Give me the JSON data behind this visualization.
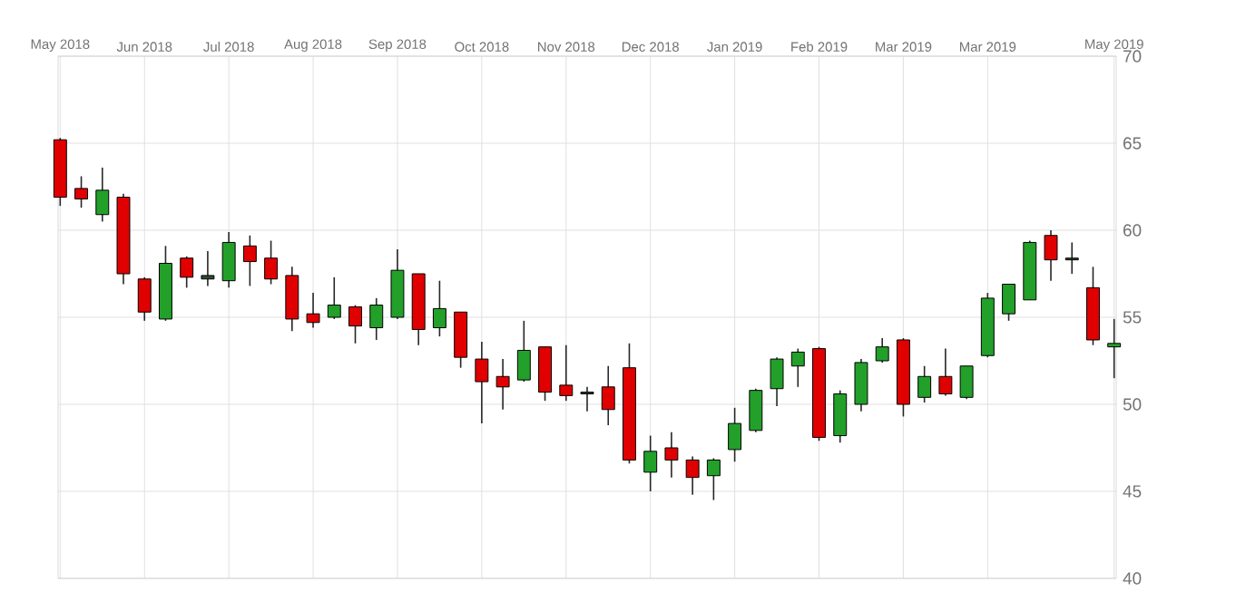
{
  "chart_data": {
    "type": "candlestick",
    "categories": [
      "May 2018",
      null,
      null,
      null,
      "Jun 2018",
      null,
      null,
      null,
      "Jul 2018",
      null,
      null,
      null,
      "Aug 2018",
      null,
      null,
      null,
      "Sep 2018",
      null,
      null,
      null,
      "Oct 2018",
      null,
      null,
      null,
      "Nov 2018",
      null,
      null,
      null,
      "Dec 2018",
      null,
      null,
      null,
      "Jan 2019",
      null,
      null,
      null,
      "Feb 2019",
      null,
      null,
      null,
      "Mar 2019",
      null,
      null,
      null,
      "Mar 2019",
      null,
      null,
      null,
      null,
      null,
      "May 2019"
    ],
    "ohlc": [
      [
        65.2,
        65.3,
        61.4,
        61.9
      ],
      [
        62.4,
        63.1,
        61.3,
        61.8
      ],
      [
        60.9,
        63.6,
        60.5,
        62.3
      ],
      [
        61.9,
        62.1,
        56.9,
        57.5
      ],
      [
        57.2,
        57.3,
        54.8,
        55.3
      ],
      [
        54.9,
        59.1,
        54.8,
        58.1
      ],
      [
        58.4,
        58.5,
        56.7,
        57.3
      ],
      [
        57.2,
        58.8,
        56.8,
        57.4
      ],
      [
        57.1,
        59.9,
        56.7,
        59.3
      ],
      [
        59.1,
        59.7,
        56.8,
        58.2
      ],
      [
        58.4,
        59.4,
        56.9,
        57.2
      ],
      [
        57.4,
        57.9,
        54.2,
        54.9
      ],
      [
        55.2,
        56.4,
        54.4,
        54.7
      ],
      [
        55.0,
        57.3,
        54.9,
        55.7
      ],
      [
        55.6,
        55.7,
        53.5,
        54.5
      ],
      [
        54.4,
        56.1,
        53.7,
        55.7
      ],
      [
        55.0,
        58.9,
        54.9,
        57.7
      ],
      [
        57.5,
        57.5,
        53.4,
        54.3
      ],
      [
        54.4,
        57.1,
        53.9,
        55.5
      ],
      [
        55.3,
        55.3,
        52.1,
        52.7
      ],
      [
        52.6,
        53.6,
        48.9,
        51.3
      ],
      [
        51.6,
        52.6,
        49.7,
        51.0
      ],
      [
        51.4,
        54.8,
        51.3,
        53.1
      ],
      [
        53.3,
        53.3,
        50.2,
        50.7
      ],
      [
        51.1,
        53.4,
        50.2,
        50.5
      ],
      [
        50.6,
        51.0,
        49.6,
        50.7
      ],
      [
        51.0,
        52.2,
        48.8,
        49.7
      ],
      [
        52.1,
        53.5,
        46.6,
        46.8
      ],
      [
        46.1,
        48.2,
        45.0,
        47.3
      ],
      [
        47.5,
        48.4,
        45.8,
        46.8
      ],
      [
        46.8,
        47.0,
        44.8,
        45.8
      ],
      [
        45.9,
        46.9,
        44.5,
        46.8
      ],
      [
        47.4,
        49.8,
        46.7,
        48.9
      ],
      [
        48.5,
        50.9,
        48.4,
        50.8
      ],
      [
        50.9,
        52.7,
        49.9,
        52.6
      ],
      [
        52.2,
        53.2,
        51.0,
        53.0
      ],
      [
        53.2,
        53.3,
        47.9,
        48.1
      ],
      [
        48.2,
        50.8,
        47.8,
        50.6
      ],
      [
        50.0,
        52.6,
        49.6,
        52.4
      ],
      [
        52.5,
        53.8,
        52.4,
        53.3
      ],
      [
        53.7,
        53.8,
        49.3,
        50.0
      ],
      [
        50.4,
        52.2,
        50.1,
        51.6
      ],
      [
        51.6,
        53.2,
        50.5,
        50.6
      ],
      [
        50.4,
        52.2,
        50.3,
        52.2
      ],
      [
        52.8,
        56.4,
        52.7,
        56.1
      ],
      [
        55.2,
        56.9,
        54.8,
        56.9
      ],
      [
        56.0,
        59.4,
        56.0,
        59.3
      ],
      [
        59.7,
        60.0,
        57.1,
        58.3
      ],
      [
        58.4,
        59.3,
        57.5,
        58.3
      ],
      [
        56.7,
        57.9,
        53.4,
        53.7
      ],
      [
        53.3,
        54.9,
        51.5,
        53.5
      ]
    ],
    "colors": [
      "#e00000",
      "#e00000",
      "#22a02a",
      "#e00000",
      "#e00000",
      "#22a02a",
      "#e00000",
      "#2f4a30",
      "#22a02a",
      "#e00000",
      "#e00000",
      "#e00000",
      "#e00000",
      "#22a02a",
      "#e00000",
      "#22a02a",
      "#22a02a",
      "#e00000",
      "#22a02a",
      "#e00000",
      "#e00000",
      "#e00000",
      "#22a02a",
      "#e00000",
      "#e00000",
      "#2f4a30",
      "#e00000",
      "#e00000",
      "#22a02a",
      "#e00000",
      "#e00000",
      "#22a02a",
      "#22a02a",
      "#22a02a",
      "#22a02a",
      "#22a02a",
      "#e00000",
      "#22a02a",
      "#22a02a",
      "#22a02a",
      "#e00000",
      "#22a02a",
      "#e00000",
      "#22a02a",
      "#22a02a",
      "#22a02a",
      "#22a02a",
      "#e00000",
      "#2f4a30",
      "#e00000",
      "#22a02a"
    ],
    "ylim": [
      40,
      70
    ],
    "yticks": [
      40,
      45,
      50,
      55,
      60,
      65,
      70
    ],
    "grid": true
  }
}
